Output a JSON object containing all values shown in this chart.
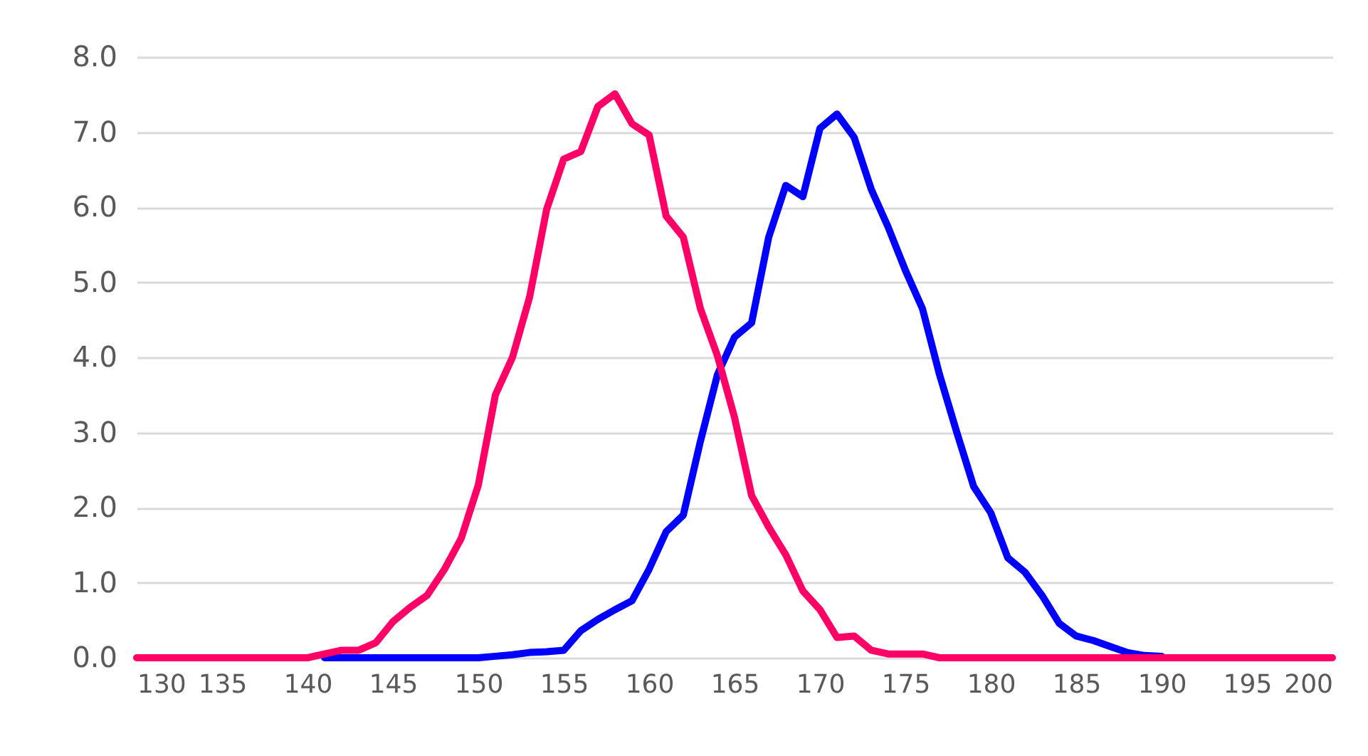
{
  "chart_data": {
    "type": "line",
    "x": [
      130,
      131,
      132,
      133,
      134,
      135,
      136,
      137,
      138,
      139,
      140,
      141,
      142,
      143,
      144,
      145,
      146,
      147,
      148,
      149,
      150,
      151,
      152,
      153,
      154,
      155,
      156,
      157,
      158,
      159,
      160,
      161,
      162,
      163,
      164,
      165,
      166,
      167,
      168,
      169,
      170,
      171,
      172,
      173,
      174,
      175,
      176,
      177,
      178,
      179,
      180,
      181,
      182,
      183,
      184,
      185,
      186,
      187,
      188,
      189,
      190,
      191,
      192,
      193,
      194,
      195,
      196,
      197,
      198,
      199,
      200
    ],
    "series": [
      {
        "color": "#0000ff",
        "values": [
          null,
          null,
          null,
          null,
          null,
          null,
          null,
          null,
          null,
          null,
          null,
          0,
          0,
          0,
          0,
          0,
          0,
          0,
          0,
          0,
          0,
          0.02,
          0.04,
          0.07,
          0.08,
          0.1,
          0.36,
          0.51,
          0.64,
          0.76,
          1.18,
          1.68,
          1.9,
          2.88,
          3.77,
          4.27,
          4.46,
          5.6,
          6.29,
          6.14,
          7.05,
          7.24,
          6.93,
          6.24,
          5.73,
          5.16,
          4.65,
          3.77,
          3.01,
          2.28,
          1.93,
          1.33,
          1.14,
          0.83,
          0.46,
          0.29,
          0.23,
          0.15,
          0.07,
          0.03,
          0.02,
          null,
          null,
          null,
          null,
          null,
          null,
          null,
          null,
          null,
          null
        ]
      },
      {
        "color": "#ff0066",
        "values": [
          0,
          0,
          0,
          0,
          0,
          0,
          0,
          0,
          0,
          0,
          0,
          0.05,
          0.1,
          0.1,
          0.2,
          0.48,
          0.67,
          0.83,
          1.17,
          1.59,
          2.3,
          3.5,
          4.0,
          4.8,
          5.97,
          6.64,
          6.74,
          7.34,
          7.51,
          7.11,
          6.96,
          5.88,
          5.6,
          4.65,
          4.02,
          3.2,
          2.16,
          1.74,
          1.37,
          0.89,
          0.64,
          0.27,
          0.29,
          0.1,
          0.05,
          0.05,
          0.05,
          0,
          0,
          0,
          0,
          0,
          0,
          0,
          0,
          0,
          0,
          0,
          0,
          0,
          0,
          0,
          0,
          0,
          0,
          0,
          0,
          0,
          0,
          0,
          0
        ]
      }
    ],
    "xlim": [
      130,
      200
    ],
    "xticks": [
      130,
      135,
      140,
      145,
      150,
      155,
      160,
      165,
      170,
      175,
      180,
      185,
      190,
      195,
      200
    ],
    "ylim": [
      0,
      8
    ],
    "yticks": [
      {
        "value": 0,
        "label": "0.0"
      },
      {
        "value": 1,
        "label": "1.0"
      },
      {
        "value": 2,
        "label": "2.0"
      },
      {
        "value": 3,
        "label": "3.0"
      },
      {
        "value": 4,
        "label": "4.0"
      },
      {
        "value": 5,
        "label": "5.0"
      },
      {
        "value": 6,
        "label": "6.0"
      },
      {
        "value": 7,
        "label": "7.0"
      },
      {
        "value": 8,
        "label": "8.0"
      }
    ],
    "grid": "y",
    "line_style": "solid",
    "marker": "none"
  }
}
